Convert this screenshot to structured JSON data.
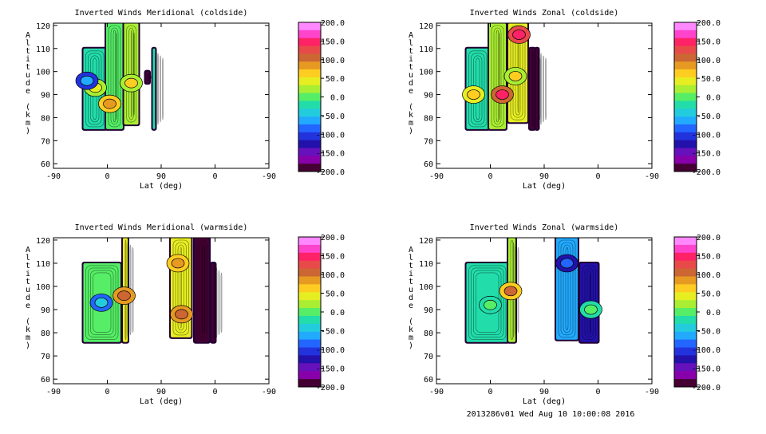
{
  "footer": "2013286v01 Wed Aug 10 10:00:08 2016",
  "colorbar": {
    "ticks": [
      "200.0",
      "150.0",
      "100.0",
      "50.0",
      "0.0",
      "-50.0",
      "-100.0",
      "-150.0",
      "-200.0"
    ],
    "colors": [
      "#ff88ff",
      "#ff44cc",
      "#ff2266",
      "#e84a4a",
      "#cc6633",
      "#e69a22",
      "#ffcc22",
      "#e6ee22",
      "#aaee33",
      "#55ee66",
      "#22ddaa",
      "#22ccdd",
      "#22aaff",
      "#2266ff",
      "#2233dd",
      "#2211aa",
      "#6611bb",
      "#8800aa",
      "#440033"
    ]
  },
  "chart_data": [
    {
      "type": "heatmap",
      "title": "Inverted Winds Meridional (coldside)",
      "xlabel": "Lat (deg)",
      "ylabel": "Altitude (km)",
      "xticks": [
        "-90",
        "0",
        "90",
        "0",
        "-90"
      ],
      "yticks": [
        "60",
        "70",
        "80",
        "90",
        "100",
        "110",
        "120"
      ],
      "ylim": [
        58,
        121
      ],
      "colorbar_range": [
        -200,
        200
      ],
      "regions": [
        {
          "x": [
            -40,
            -2
          ],
          "y": [
            75,
            110
          ],
          "value": -20
        },
        {
          "x": [
            -2,
            26
          ],
          "y": [
            75,
            121
          ],
          "value": 0
        },
        {
          "x": [
            28,
            52
          ],
          "y": [
            77,
            121
          ],
          "value": 20
        },
        {
          "x": [
            64,
            70
          ],
          "y": [
            95,
            100
          ],
          "value": -180
        },
        {
          "x": [
            76,
            80
          ],
          "y": [
            75,
            110
          ],
          "value": -30
        }
      ],
      "highlights": [
        {
          "x": -20,
          "y": 93,
          "value": 20
        },
        {
          "x": 4,
          "y": 86,
          "value": 60
        },
        {
          "x": 40,
          "y": 95,
          "value": 30
        },
        {
          "x": -34,
          "y": 96,
          "value": -100
        }
      ]
    },
    {
      "type": "heatmap",
      "title": "Inverted Winds Zonal (coldside)",
      "xlabel": "Lat (deg)",
      "ylabel": "Altitude (km)",
      "xticks": [
        "-90",
        "0",
        "90",
        "0",
        "-90"
      ],
      "yticks": [
        "60",
        "70",
        "80",
        "90",
        "100",
        "110",
        "120"
      ],
      "ylim": [
        58,
        121
      ],
      "colorbar_range": [
        -200,
        200
      ],
      "regions": [
        {
          "x": [
            -40,
            -2
          ],
          "y": [
            75,
            110
          ],
          "value": -30
        },
        {
          "x": [
            -2,
            26
          ],
          "y": [
            75,
            121
          ],
          "value": 20
        },
        {
          "x": [
            30,
            62
          ],
          "y": [
            78,
            121
          ],
          "value": 40
        },
        {
          "x": [
            66,
            74
          ],
          "y": [
            75,
            110
          ],
          "value": -190
        },
        {
          "x": [
            76,
            80
          ],
          "y": [
            75,
            110
          ],
          "value": -190
        }
      ],
      "highlights": [
        {
          "x": 20,
          "y": 90,
          "value": 110
        },
        {
          "x": 48,
          "y": 116,
          "value": 120
        },
        {
          "x": -28,
          "y": 90,
          "value": 40
        },
        {
          "x": 42,
          "y": 98,
          "value": 30
        }
      ]
    },
    {
      "type": "heatmap",
      "title": "Inverted Winds Meridional (warmside)",
      "xlabel": "Lat (deg)",
      "ylabel": "Altitude (km)",
      "xticks": [
        "-90",
        "0",
        "90",
        "0",
        "-90"
      ],
      "yticks": [
        "60",
        "70",
        "80",
        "90",
        "100",
        "110",
        "120"
      ],
      "ylim": [
        58,
        121
      ],
      "colorbar_range": [
        -200,
        200
      ],
      "regions": [
        {
          "x": [
            -40,
            22
          ],
          "y": [
            76,
            110
          ],
          "value": -10
        },
        {
          "x": [
            26,
            34
          ],
          "y": [
            76,
            121
          ],
          "value": 40
        },
        {
          "x": [
            106,
            140
          ],
          "y": [
            78,
            121
          ],
          "value": 40
        },
        {
          "x": [
            146,
            170
          ],
          "y": [
            76,
            121
          ],
          "value": -190
        },
        {
          "x": [
            174,
            180
          ],
          "y": [
            76,
            110
          ],
          "value": -190
        }
      ],
      "highlights": [
        {
          "x": 28,
          "y": 96,
          "value": 80
        },
        {
          "x": -10,
          "y": 93,
          "value": -80
        },
        {
          "x": 124,
          "y": 88,
          "value": 80
        },
        {
          "x": 118,
          "y": 110,
          "value": 60
        }
      ]
    },
    {
      "type": "heatmap",
      "title": "Inverted Winds Zonal (warmside)",
      "xlabel": "Lat (deg)",
      "ylabel": "Altitude (km)",
      "xticks": [
        "-90",
        "0",
        "90",
        "0",
        "-90"
      ],
      "yticks": [
        "60",
        "70",
        "80",
        "90",
        "100",
        "110",
        "120"
      ],
      "ylim": [
        58,
        121
      ],
      "colorbar_range": [
        -200,
        200
      ],
      "regions": [
        {
          "x": [
            -40,
            30
          ],
          "y": [
            76,
            110
          ],
          "value": -20
        },
        {
          "x": [
            30,
            42
          ],
          "y": [
            76,
            121
          ],
          "value": 30
        },
        {
          "x": [
            110,
            146
          ],
          "y": [
            77,
            121
          ],
          "value": -70
        },
        {
          "x": [
            150,
            180
          ],
          "y": [
            76,
            110
          ],
          "value": -120
        }
      ],
      "highlights": [
        {
          "x": 34,
          "y": 98,
          "value": 70
        },
        {
          "x": 128,
          "y": 110,
          "value": -120
        },
        {
          "x": 0,
          "y": 92,
          "value": -20
        },
        {
          "x": 168,
          "y": 90,
          "value": -20
        }
      ]
    }
  ]
}
